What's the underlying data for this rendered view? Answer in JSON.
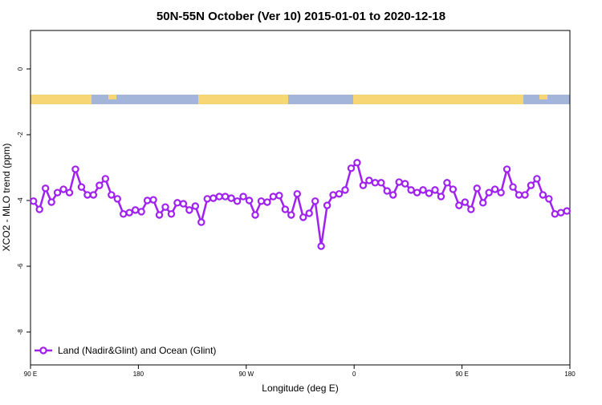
{
  "chart_data": {
    "type": "line",
    "title": "50N-55N October (Ver 10)   2015-01-01 to 2020-12-18",
    "x_label": "Longitude (deg E)",
    "y_label": "XCO2 - MLO trend (ppm)",
    "xlim": [
      90,
      540
    ],
    "xticks": [
      {
        "value": 90,
        "label": "90 E"
      },
      {
        "value": 180,
        "label": "180"
      },
      {
        "value": 270,
        "label": "90 W"
      },
      {
        "value": 360,
        "label": "0"
      },
      {
        "value": 450,
        "label": "90 E"
      },
      {
        "value": 540,
        "label": "180"
      }
    ],
    "ylim": [
      -9.0,
      1.17
    ],
    "yticks": [
      -8,
      -6,
      -4,
      -2,
      0
    ],
    "legend": "bottomleft",
    "x": [
      92.5,
      97.5,
      102.5,
      107.5,
      112.5,
      117.5,
      122.5,
      127.5,
      132.5,
      137.5,
      142.5,
      147.5,
      152.5,
      157.5,
      162.5,
      167.5,
      172.5,
      177.5,
      182.5,
      187.5,
      192.5,
      197.5,
      202.5,
      207.5,
      212.5,
      217.5,
      222.5,
      227.5,
      232.5,
      237.5,
      242.5,
      247.5,
      252.5,
      257.5,
      262.5,
      267.5,
      272.5,
      277.5,
      282.5,
      287.5,
      292.5,
      297.5,
      302.5,
      307.5,
      312.5,
      317.5,
      322.5,
      327.5,
      332.5,
      337.5,
      342.5,
      347.5,
      352.5,
      357.5,
      362.5,
      367.5,
      372.5,
      377.5,
      382.5,
      387.5,
      392.5,
      397.5,
      402.5,
      407.5,
      412.5,
      417.5,
      422.5,
      427.5,
      432.5,
      437.5,
      442.5,
      447.5,
      452.5,
      457.5,
      462.5,
      467.5,
      472.5,
      477.5,
      482.5,
      487.5,
      492.5,
      497.5,
      502.5,
      507.5,
      512.5,
      517.5,
      522.5,
      527.5,
      532.5,
      537.5
    ],
    "series": [
      {
        "name": "Land (Nadir&Glint) and Ocean (Glint)",
        "color": "#a020f0",
        "values": [
          -4.02,
          -4.27,
          -3.63,
          -4.05,
          -3.76,
          -3.66,
          -3.76,
          -3.05,
          -3.59,
          -3.83,
          -3.83,
          -3.54,
          -3.34,
          -3.83,
          -3.95,
          -4.41,
          -4.37,
          -4.29,
          -4.34,
          -4.0,
          -3.98,
          -4.44,
          -4.2,
          -4.41,
          -4.07,
          -4.1,
          -4.29,
          -4.17,
          -4.66,
          -3.95,
          -3.93,
          -3.88,
          -3.88,
          -3.93,
          -4.02,
          -3.88,
          -4.0,
          -4.44,
          -4.02,
          -4.05,
          -3.88,
          -3.85,
          -4.27,
          -4.44,
          -3.8,
          -4.51,
          -4.39,
          -4.02,
          -5.39,
          -4.15,
          -3.83,
          -3.8,
          -3.68,
          -3.02,
          -2.85,
          -3.54,
          -3.39,
          -3.46,
          -3.46,
          -3.71,
          -3.83,
          -3.44,
          -3.49,
          -3.68,
          -3.76,
          -3.68,
          -3.78,
          -3.68,
          -3.88,
          -3.46,
          -3.66,
          -4.15,
          -4.05,
          -4.27,
          -3.63,
          -4.07,
          -3.76,
          -3.66,
          -3.76,
          -3.05,
          -3.59,
          -3.83,
          -3.83,
          -3.54,
          -3.34,
          -3.83,
          -3.95,
          -4.41,
          -4.37,
          -4.32
        ]
      }
    ]
  }
}
